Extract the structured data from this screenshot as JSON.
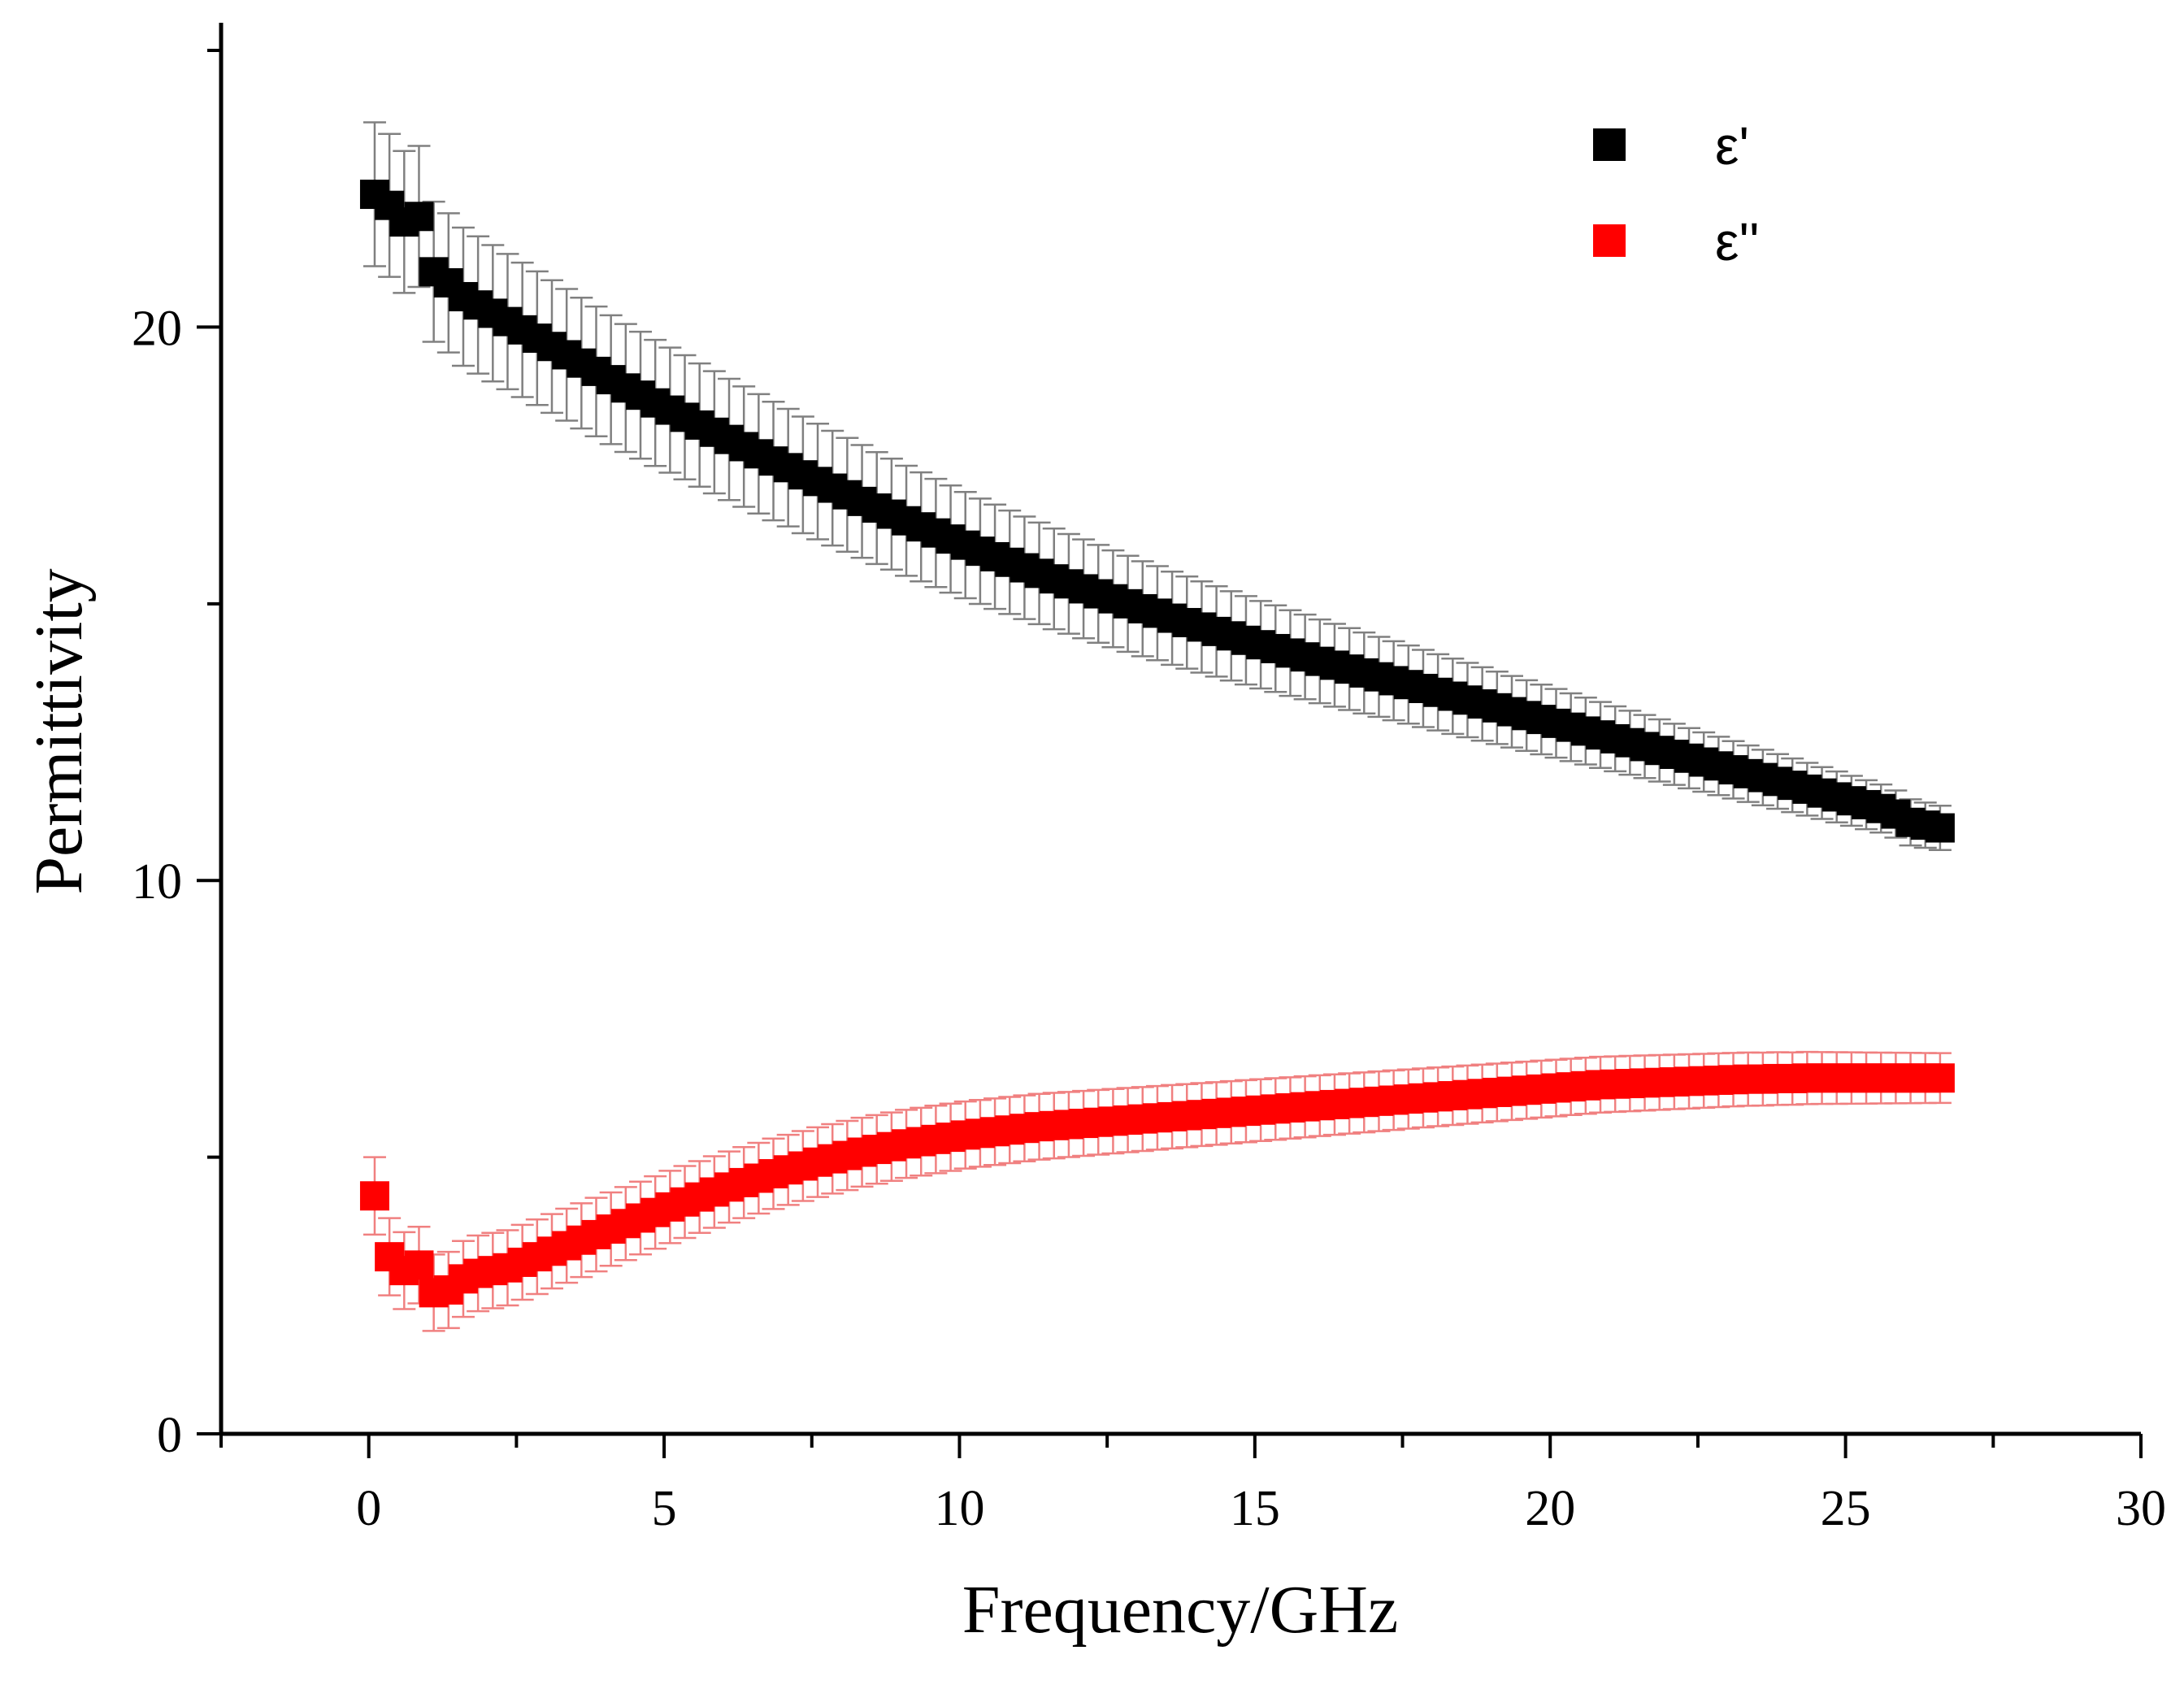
{
  "chart_data": {
    "type": "scatter",
    "title": "",
    "xlabel": "Frequency/GHz",
    "ylabel": "Permittivity",
    "xlim": [
      -2.5,
      30
    ],
    "ylim": [
      0,
      25.5
    ],
    "xticks": [
      0,
      5,
      10,
      15,
      20,
      25,
      30
    ],
    "xtick_labels": [
      "0",
      "5",
      "10",
      "15",
      "20",
      "25",
      "30"
    ],
    "yticks": [
      0,
      10,
      20
    ],
    "ytick_labels": [
      "0",
      "10",
      "20"
    ],
    "minor_x_step": 2.5,
    "minor_y_step": 5,
    "grid": false,
    "legend_position": "top-right",
    "colors": {
      "eps_real": "#000000",
      "eps_real_err": "#808080",
      "eps_imag": "#ff0000",
      "eps_imag_err": "#f08080",
      "axis": "#000000"
    },
    "series": [
      {
        "name": "ε'",
        "x": [
          0.1,
          0.35,
          0.6,
          0.85,
          1.1,
          1.35,
          1.6,
          1.85,
          2.1,
          2.35,
          2.6,
          2.85,
          3.1,
          3.35,
          3.6,
          3.85,
          4.1,
          4.35,
          4.6,
          4.85,
          5.1,
          5.35,
          5.6,
          5.85,
          6.1,
          6.35,
          6.6,
          6.85,
          7.1,
          7.35,
          7.6,
          7.85,
          8.1,
          8.35,
          8.6,
          8.85,
          9.1,
          9.35,
          9.6,
          9.85,
          10.1,
          10.35,
          10.6,
          10.85,
          11.1,
          11.35,
          11.6,
          11.85,
          12.1,
          12.35,
          12.6,
          12.85,
          13.1,
          13.35,
          13.6,
          13.85,
          14.1,
          14.35,
          14.6,
          14.85,
          15.1,
          15.35,
          15.6,
          15.85,
          16.1,
          16.35,
          16.6,
          16.85,
          17.1,
          17.35,
          17.6,
          17.85,
          18.1,
          18.35,
          18.6,
          18.85,
          19.1,
          19.35,
          19.6,
          19.85,
          20.1,
          20.35,
          20.6,
          20.85,
          21.1,
          21.35,
          21.6,
          21.85,
          22.1,
          22.35,
          22.6,
          22.85,
          23.1,
          23.35,
          23.6,
          23.85,
          24.1,
          24.35,
          24.6,
          24.85,
          25.1,
          25.35,
          25.6,
          25.85,
          26.1,
          26.35,
          26.6
        ],
        "y": [
          22.4,
          22.2,
          21.9,
          22.0,
          21.0,
          20.8,
          20.55,
          20.4,
          20.25,
          20.1,
          19.95,
          19.8,
          19.65,
          19.5,
          19.35,
          19.2,
          19.05,
          18.9,
          18.77,
          18.63,
          18.5,
          18.37,
          18.23,
          18.1,
          17.97,
          17.84,
          17.71,
          17.58,
          17.46,
          17.33,
          17.21,
          17.09,
          16.97,
          16.85,
          16.73,
          16.62,
          16.5,
          16.39,
          16.28,
          16.17,
          16.06,
          15.95,
          15.85,
          15.75,
          15.65,
          15.55,
          15.45,
          15.36,
          15.27,
          15.18,
          15.09,
          15.0,
          14.91,
          14.83,
          14.74,
          14.66,
          14.58,
          14.5,
          14.42,
          14.34,
          14.26,
          14.19,
          14.11,
          14.04,
          13.96,
          13.89,
          13.82,
          13.75,
          13.68,
          13.61,
          13.54,
          13.47,
          13.4,
          13.33,
          13.26,
          13.19,
          13.12,
          13.05,
          12.98,
          12.91,
          12.84,
          12.77,
          12.7,
          12.63,
          12.56,
          12.49,
          12.42,
          12.35,
          12.28,
          12.21,
          12.14,
          12.07,
          12.0,
          11.93,
          11.86,
          11.79,
          11.72,
          11.65,
          11.58,
          11.51,
          11.44,
          11.37,
          11.3,
          11.2,
          11.05,
          11.0,
          10.95
        ],
        "error_start": 1.3,
        "error_end": 0.4
      },
      {
        "name": "ε''",
        "x": [
          0.1,
          0.35,
          0.6,
          0.85,
          1.1,
          1.35,
          1.6,
          1.85,
          2.1,
          2.35,
          2.6,
          2.85,
          3.1,
          3.35,
          3.6,
          3.85,
          4.1,
          4.35,
          4.6,
          4.85,
          5.1,
          5.35,
          5.6,
          5.85,
          6.1,
          6.35,
          6.6,
          6.85,
          7.1,
          7.35,
          7.6,
          7.85,
          8.1,
          8.35,
          8.6,
          8.85,
          9.1,
          9.35,
          9.6,
          9.85,
          10.1,
          10.35,
          10.6,
          10.85,
          11.1,
          11.35,
          11.6,
          11.85,
          12.1,
          12.35,
          12.6,
          12.85,
          13.1,
          13.35,
          13.6,
          13.85,
          14.1,
          14.35,
          14.6,
          14.85,
          15.1,
          15.35,
          15.6,
          15.85,
          16.1,
          16.35,
          16.6,
          16.85,
          17.1,
          17.35,
          17.6,
          17.85,
          18.1,
          18.35,
          18.6,
          18.85,
          19.1,
          19.35,
          19.6,
          19.85,
          20.1,
          20.35,
          20.6,
          20.85,
          21.1,
          21.35,
          21.6,
          21.85,
          22.1,
          22.35,
          22.6,
          22.85,
          23.1,
          23.35,
          23.6,
          23.85,
          24.1,
          24.35,
          24.6,
          24.85,
          25.1,
          25.35,
          25.6,
          25.85,
          26.1,
          26.35,
          26.6
        ],
        "y": [
          4.3,
          3.2,
          2.95,
          3.05,
          2.55,
          2.6,
          2.8,
          2.9,
          2.95,
          3.0,
          3.1,
          3.2,
          3.3,
          3.4,
          3.5,
          3.6,
          3.7,
          3.8,
          3.9,
          4.0,
          4.1,
          4.19,
          4.28,
          4.37,
          4.46,
          4.54,
          4.62,
          4.7,
          4.77,
          4.84,
          4.91,
          4.97,
          5.03,
          5.09,
          5.14,
          5.19,
          5.24,
          5.28,
          5.32,
          5.36,
          5.4,
          5.43,
          5.46,
          5.49,
          5.52,
          5.55,
          5.57,
          5.59,
          5.61,
          5.63,
          5.65,
          5.67,
          5.69,
          5.71,
          5.73,
          5.75,
          5.77,
          5.79,
          5.81,
          5.83,
          5.85,
          5.87,
          5.89,
          5.91,
          5.93,
          5.95,
          5.97,
          5.99,
          6.01,
          6.03,
          6.05,
          6.07,
          6.09,
          6.11,
          6.13,
          6.15,
          6.17,
          6.19,
          6.21,
          6.23,
          6.25,
          6.27,
          6.29,
          6.31,
          6.32,
          6.33,
          6.34,
          6.35,
          6.36,
          6.37,
          6.38,
          6.39,
          6.4,
          6.41,
          6.41,
          6.42,
          6.42,
          6.43,
          6.43,
          6.43,
          6.43,
          6.43,
          6.43,
          6.43,
          6.43,
          6.43,
          6.43
        ],
        "error_start": 0.7,
        "error_end": 0.45
      }
    ]
  }
}
